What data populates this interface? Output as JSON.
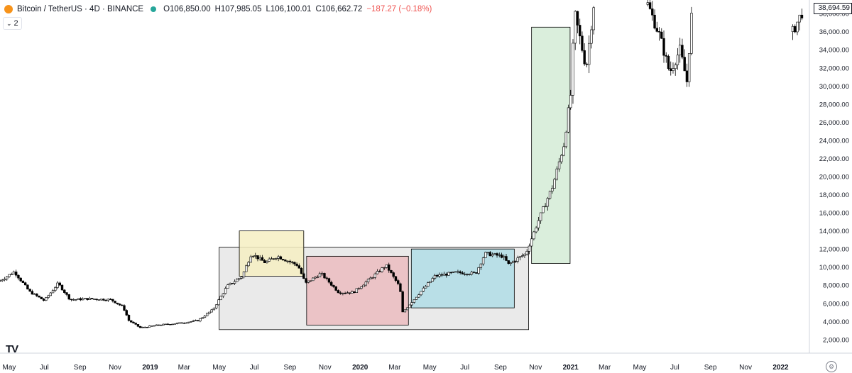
{
  "header": {
    "symbol": "Bitcoin / TetherUS · 4D · BINANCE",
    "open": "O106,850.00",
    "high": "H107,985.05",
    "low": "L106,100.01",
    "close": "C106,662.72",
    "change": "−187.27 (−0.18%)",
    "change_color": "#ef5350",
    "status_dot_color": "#26a69a"
  },
  "collapse_button": {
    "label": "2"
  },
  "logo_text": "TV",
  "last_price_label": "38,694.59",
  "chart_data": {
    "type": "candlestick",
    "y_axis": {
      "ticks": [
        2000,
        4000,
        6000,
        8000,
        10000,
        12000,
        14000,
        16000,
        18000,
        20000,
        22000,
        24000,
        26000,
        28000,
        30000,
        32000,
        34000,
        36000,
        38000
      ],
      "tick_labels": [
        "2,000.00",
        "4,000.00",
        "6,000.00",
        "8,000.00",
        "10,000.00",
        "12,000.00",
        "14,000.00",
        "16,000.00",
        "18,000.00",
        "20,000.00",
        "22,000.00",
        "24,000.00",
        "26,000.00",
        "28,000.00",
        "30,000.00",
        "32,000.00",
        "34,000.00",
        "36,000.00",
        "38,000.00"
      ],
      "range": [
        500,
        39500
      ]
    },
    "x_axis": {
      "range": [
        "2018-04-15",
        "2022-02-20"
      ],
      "ticks": [
        {
          "date": "2018-05-01",
          "label": "May",
          "bold": false
        },
        {
          "date": "2018-07-01",
          "label": "Jul",
          "bold": false
        },
        {
          "date": "2018-09-01",
          "label": "Sep",
          "bold": false
        },
        {
          "date": "2018-11-01",
          "label": "Nov",
          "bold": false
        },
        {
          "date": "2019-01-01",
          "label": "2019",
          "bold": true
        },
        {
          "date": "2019-03-01",
          "label": "Mar",
          "bold": false
        },
        {
          "date": "2019-05-01",
          "label": "May",
          "bold": false
        },
        {
          "date": "2019-07-01",
          "label": "Jul",
          "bold": false
        },
        {
          "date": "2019-09-01",
          "label": "Sep",
          "bold": false
        },
        {
          "date": "2019-11-01",
          "label": "Nov",
          "bold": false
        },
        {
          "date": "2020-01-01",
          "label": "2020",
          "bold": true
        },
        {
          "date": "2020-03-01",
          "label": "Mar",
          "bold": false
        },
        {
          "date": "2020-05-01",
          "label": "May",
          "bold": false
        },
        {
          "date": "2020-07-01",
          "label": "Jul",
          "bold": false
        },
        {
          "date": "2020-09-01",
          "label": "Sep",
          "bold": false
        },
        {
          "date": "2020-11-01",
          "label": "Nov",
          "bold": false
        },
        {
          "date": "2021-01-01",
          "label": "2021",
          "bold": true
        },
        {
          "date": "2021-03-01",
          "label": "Mar",
          "bold": false
        },
        {
          "date": "2021-05-01",
          "label": "May",
          "bold": false
        },
        {
          "date": "2021-07-01",
          "label": "Jul",
          "bold": false
        },
        {
          "date": "2021-09-01",
          "label": "Sep",
          "bold": false
        },
        {
          "date": "2021-11-01",
          "label": "Nov",
          "bold": false
        },
        {
          "date": "2022-01-01",
          "label": "2022",
          "bold": true
        }
      ]
    },
    "price_path": [
      {
        "date": "2018-04-15",
        "price": 8500
      },
      {
        "date": "2018-05-10",
        "price": 9500
      },
      {
        "date": "2018-06-05",
        "price": 7300
      },
      {
        "date": "2018-07-01",
        "price": 6300
      },
      {
        "date": "2018-07-25",
        "price": 8200
      },
      {
        "date": "2018-08-15",
        "price": 6400
      },
      {
        "date": "2018-09-15",
        "price": 6500
      },
      {
        "date": "2018-10-25",
        "price": 6400
      },
      {
        "date": "2018-11-15",
        "price": 5600
      },
      {
        "date": "2018-11-25",
        "price": 4100
      },
      {
        "date": "2018-12-15",
        "price": 3300
      },
      {
        "date": "2019-01-15",
        "price": 3600
      },
      {
        "date": "2019-02-20",
        "price": 3800
      },
      {
        "date": "2019-03-25",
        "price": 4100
      },
      {
        "date": "2019-04-20",
        "price": 5300
      },
      {
        "date": "2019-05-15",
        "price": 7900
      },
      {
        "date": "2019-06-10",
        "price": 9000
      },
      {
        "date": "2019-06-26",
        "price": 11500
      },
      {
        "date": "2019-07-20",
        "price": 10500
      },
      {
        "date": "2019-08-10",
        "price": 11200
      },
      {
        "date": "2019-09-15",
        "price": 10200
      },
      {
        "date": "2019-09-28",
        "price": 8200
      },
      {
        "date": "2019-10-25",
        "price": 9300
      },
      {
        "date": "2019-11-25",
        "price": 7200
      },
      {
        "date": "2019-12-20",
        "price": 7200
      },
      {
        "date": "2020-01-20",
        "price": 8800
      },
      {
        "date": "2020-02-15",
        "price": 10200
      },
      {
        "date": "2020-03-10",
        "price": 7800
      },
      {
        "date": "2020-03-15",
        "price": 5000
      },
      {
        "date": "2020-04-10",
        "price": 6900
      },
      {
        "date": "2020-05-10",
        "price": 9000
      },
      {
        "date": "2020-06-15",
        "price": 9400
      },
      {
        "date": "2020-07-20",
        "price": 9300
      },
      {
        "date": "2020-08-05",
        "price": 11500
      },
      {
        "date": "2020-09-05",
        "price": 11200
      },
      {
        "date": "2020-09-15",
        "price": 10300
      },
      {
        "date": "2020-10-15",
        "price": 11500
      },
      {
        "date": "2020-11-05",
        "price": 15000
      },
      {
        "date": "2020-12-01",
        "price": 19000
      },
      {
        "date": "2020-12-20",
        "price": 23500
      },
      {
        "date": "2021-01-01",
        "price": 29000
      },
      {
        "date": "2021-01-08",
        "price": 38000
      },
      {
        "date": "2021-01-28",
        "price": 32000
      },
      {
        "date": "2021-02-10",
        "price": 39000
      }
    ],
    "later_segment": [
      {
        "date": "2021-05-15",
        "price": 39000
      },
      {
        "date": "2021-06-05",
        "price": 35500
      },
      {
        "date": "2021-06-22",
        "price": 31500
      },
      {
        "date": "2021-07-10",
        "price": 34000
      },
      {
        "date": "2021-07-22",
        "price": 30500
      },
      {
        "date": "2021-08-01",
        "price": 39500
      }
    ],
    "final_segment": [
      {
        "date": "2022-01-22",
        "price": 36000
      },
      {
        "date": "2022-02-10",
        "price": 38500
      }
    ],
    "annotations": [
      {
        "kind": "range-box",
        "name": "overall-range",
        "from": "2019-05-01",
        "to": "2020-10-20",
        "price_low": 3100,
        "price_high": 12200,
        "fill": "#e6e6e6",
        "stroke": "#000000"
      },
      {
        "kind": "range-box",
        "name": "yellow-zone",
        "from": "2019-06-05",
        "to": "2019-09-25",
        "price_low": 9000,
        "price_high": 14000,
        "fill": "#f6eec2",
        "stroke": "#000000"
      },
      {
        "kind": "range-box",
        "name": "pink-zone",
        "from": "2019-09-30",
        "to": "2020-03-25",
        "price_low": 3600,
        "price_high": 11200,
        "fill": "#ebbcc0",
        "stroke": "#000000"
      },
      {
        "kind": "range-box",
        "name": "blue-zone",
        "from": "2020-03-30",
        "to": "2020-09-25",
        "price_low": 5500,
        "price_high": 12000,
        "fill": "#b0dde6",
        "stroke": "#000000"
      },
      {
        "kind": "range-box",
        "name": "green-zone",
        "from": "2020-10-25",
        "to": "2020-12-31",
        "price_low": 10400,
        "price_high": 36500,
        "fill": "#d3ebd6",
        "stroke": "#000000"
      }
    ],
    "grid": false
  }
}
